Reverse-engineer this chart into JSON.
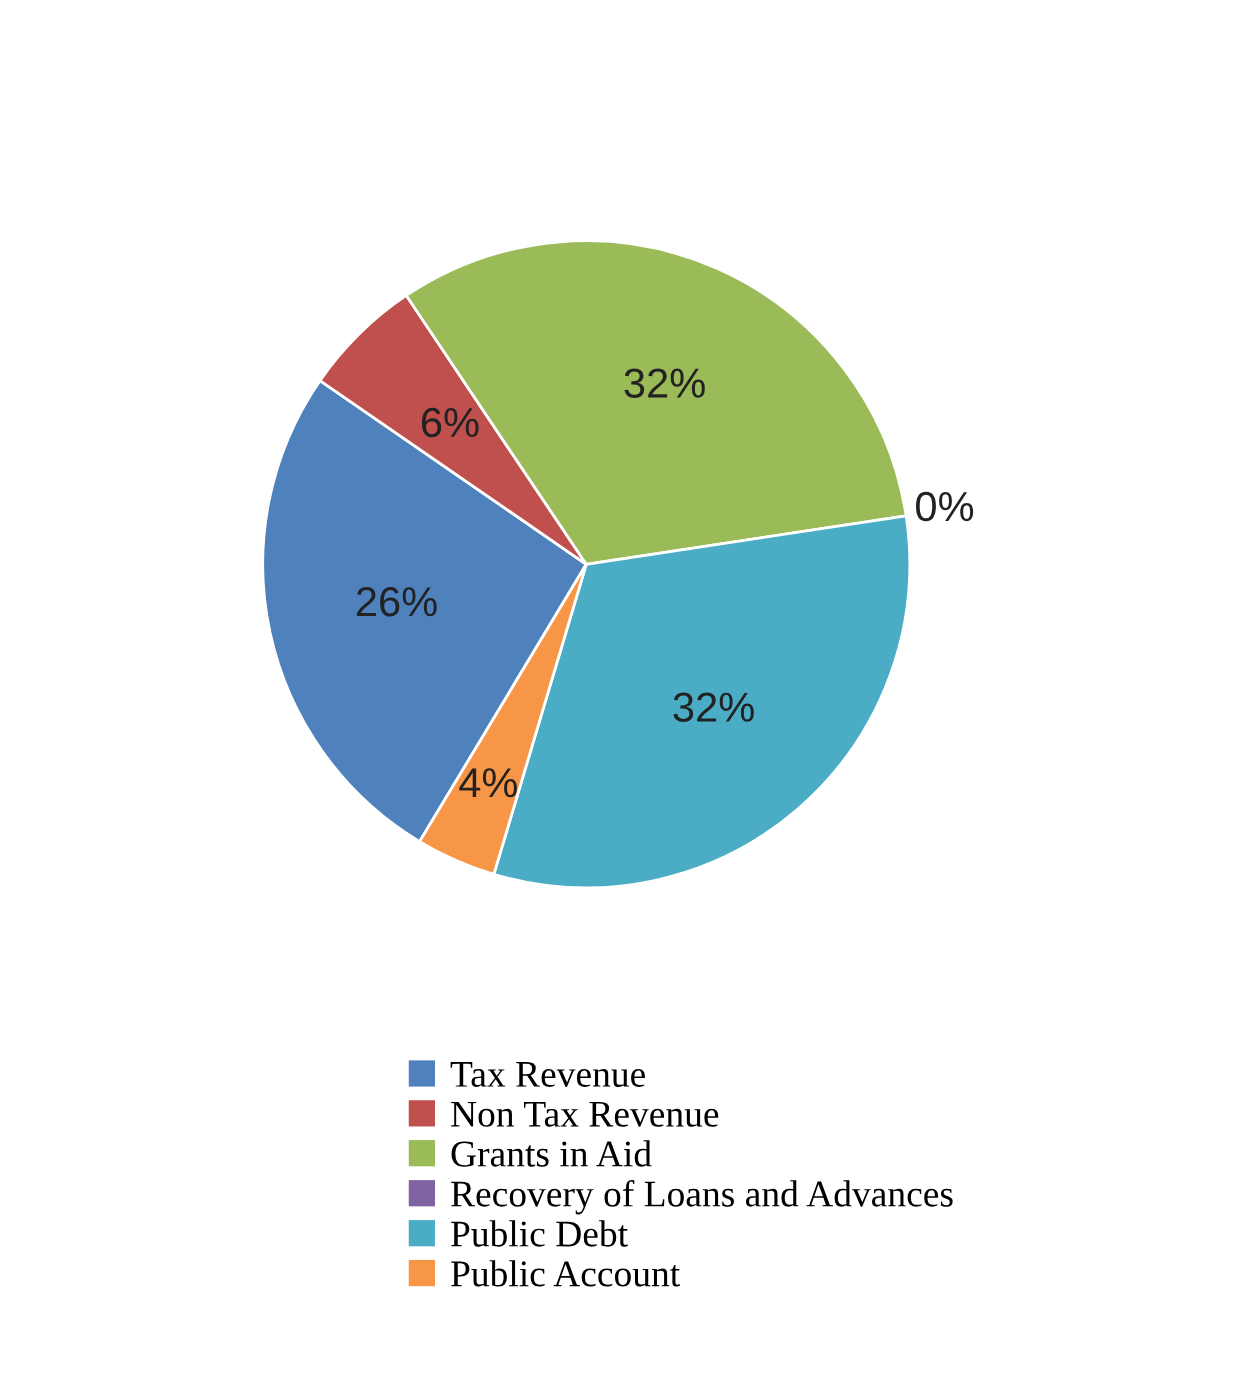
{
  "chart_data": {
    "type": "pie",
    "categories": [
      "Tax Revenue",
      "Non Tax Revenue",
      "Grants in Aid",
      "Recovery of Loans and Advances",
      "Public Debt",
      "Public Account"
    ],
    "values": [
      26,
      6,
      32,
      0,
      32,
      4
    ],
    "value_labels": [
      "26%",
      "6%",
      "32%",
      "0%",
      "32%",
      "4%"
    ],
    "colors": [
      "#4f81bd",
      "#c0504d",
      "#9bbb59",
      "#8064a2",
      "#4bacc6",
      "#f79646"
    ],
    "legend": "bottom"
  }
}
